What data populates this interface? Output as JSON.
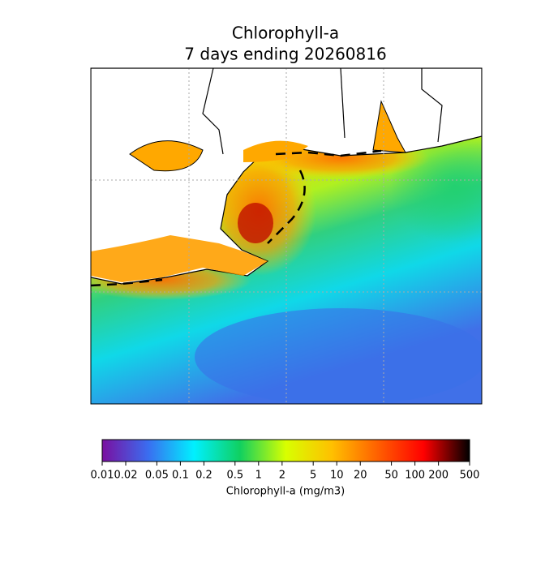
{
  "title": [
    "Chlorophyll-a",
    "7 days ending 20260816"
  ],
  "colorbar": {
    "label": "Chlorophyll-a (mg/m3)",
    "scale": "log",
    "lim": [
      0.01,
      500
    ],
    "ticks": [
      0.01,
      0.02,
      0.05,
      0.1,
      0.2,
      0.5,
      1,
      2,
      5,
      10,
      20,
      50,
      100,
      200,
      500
    ],
    "colors": [
      "#7a0fa0",
      "#3a6df0",
      "#00f0ff",
      "#10d060",
      "#d8ff00",
      "#ffc000",
      "#ff6000",
      "#ff0000",
      "#000000"
    ]
  }
}
